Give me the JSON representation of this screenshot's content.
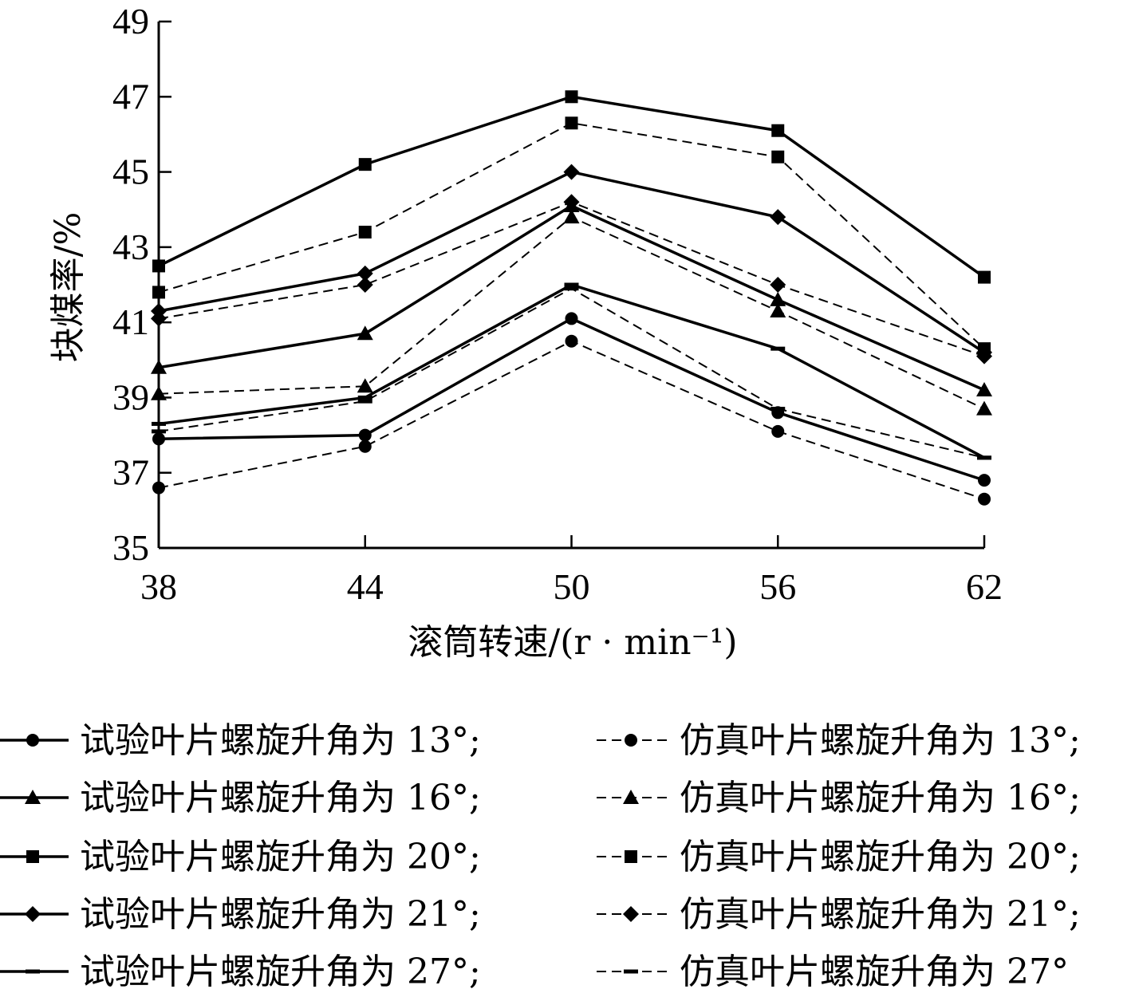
{
  "chart_data": {
    "type": "line",
    "xlabel": "滚筒转速/(r · min⁻¹)",
    "ylabel": "块煤率/%",
    "x": [
      38,
      44,
      50,
      56,
      62
    ],
    "xlim": [
      38,
      62
    ],
    "ylim": [
      35,
      49
    ],
    "yticks": [
      35,
      37,
      39,
      41,
      43,
      45,
      47,
      49
    ],
    "grid": false,
    "legend_position": "bottom",
    "series": [
      {
        "name": "试验叶片螺旋升角为 13°;",
        "marker": "circle",
        "style": "solid",
        "values": [
          37.9,
          38.0,
          41.1,
          38.6,
          36.8
        ]
      },
      {
        "name": "试验叶片螺旋升角为 16°;",
        "marker": "triangle",
        "style": "solid",
        "values": [
          39.8,
          40.7,
          44.1,
          41.6,
          39.2
        ]
      },
      {
        "name": "试验叶片螺旋升角为 20°;",
        "marker": "square",
        "style": "solid",
        "values": [
          42.5,
          45.2,
          47.0,
          46.1,
          42.2
        ]
      },
      {
        "name": "试验叶片螺旋升角为 21°;",
        "marker": "diamond",
        "style": "solid",
        "values": [
          41.3,
          42.3,
          45.0,
          43.8,
          40.2
        ]
      },
      {
        "name": "试验叶片螺旋升角为 27°;",
        "marker": "dash",
        "style": "solid",
        "values": [
          38.3,
          39.0,
          42.0,
          40.3,
          37.4
        ]
      },
      {
        "name": "仿真叶片螺旋升角为 13°;",
        "marker": "circle",
        "style": "dashed",
        "values": [
          36.6,
          37.7,
          40.5,
          38.1,
          36.3
        ]
      },
      {
        "name": "仿真叶片螺旋升角为 16°;",
        "marker": "triangle",
        "style": "dashed",
        "values": [
          39.1,
          39.3,
          43.8,
          41.3,
          38.7
        ]
      },
      {
        "name": "仿真叶片螺旋升角为 20°;",
        "marker": "square",
        "style": "dashed",
        "values": [
          41.8,
          43.4,
          46.3,
          45.4,
          40.3
        ]
      },
      {
        "name": "仿真叶片螺旋升角为 21°;",
        "marker": "diamond",
        "style": "dashed",
        "values": [
          41.1,
          42.0,
          44.2,
          42.0,
          40.1
        ]
      },
      {
        "name": "仿真叶片螺旋升角为 27°",
        "marker": "dash",
        "style": "dashed",
        "values": [
          38.1,
          38.9,
          41.9,
          38.7,
          37.4
        ]
      }
    ]
  }
}
